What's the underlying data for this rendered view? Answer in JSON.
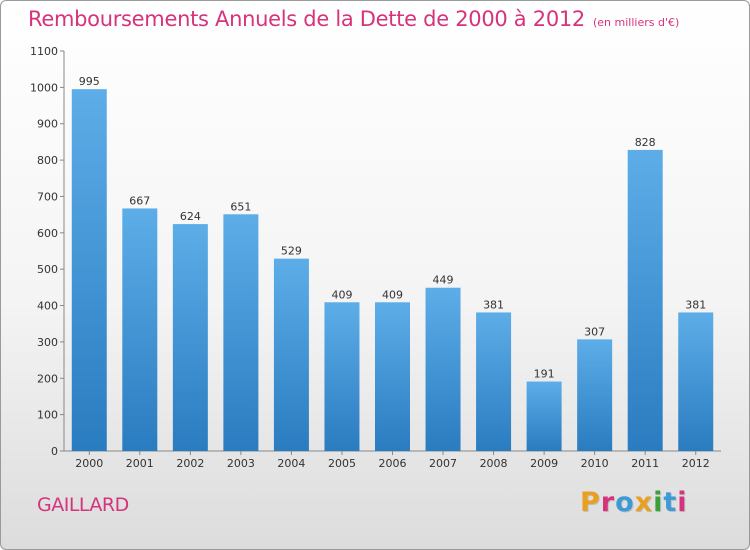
{
  "header": {
    "title": "Remboursements Annuels de la Dette de 2000 à 2012",
    "subtitle": "(en milliers d'€)"
  },
  "footer": {
    "place": "GAILLARD",
    "logo": "Proxiti"
  },
  "colors": {
    "title": "#d6337c",
    "bar_top": "#5dade8",
    "bar_bottom": "#2a7cc0",
    "logo_letters": [
      "#e8a020",
      "#d6337c",
      "#3c9ad6",
      "#e8a020",
      "#3aa03a",
      "#3c9ad6",
      "#d6337c"
    ]
  },
  "chart_data": {
    "type": "bar",
    "categories": [
      "2000",
      "2001",
      "2002",
      "2003",
      "2004",
      "2005",
      "2006",
      "2007",
      "2008",
      "2009",
      "2010",
      "2011",
      "2012"
    ],
    "values": [
      995,
      667,
      624,
      651,
      529,
      409,
      409,
      449,
      381,
      191,
      307,
      828,
      381
    ],
    "ylim": [
      0,
      1100
    ],
    "yticks": [
      0,
      100,
      200,
      300,
      400,
      500,
      600,
      700,
      800,
      900,
      1000,
      1100
    ],
    "grid": false,
    "legend": "none"
  }
}
